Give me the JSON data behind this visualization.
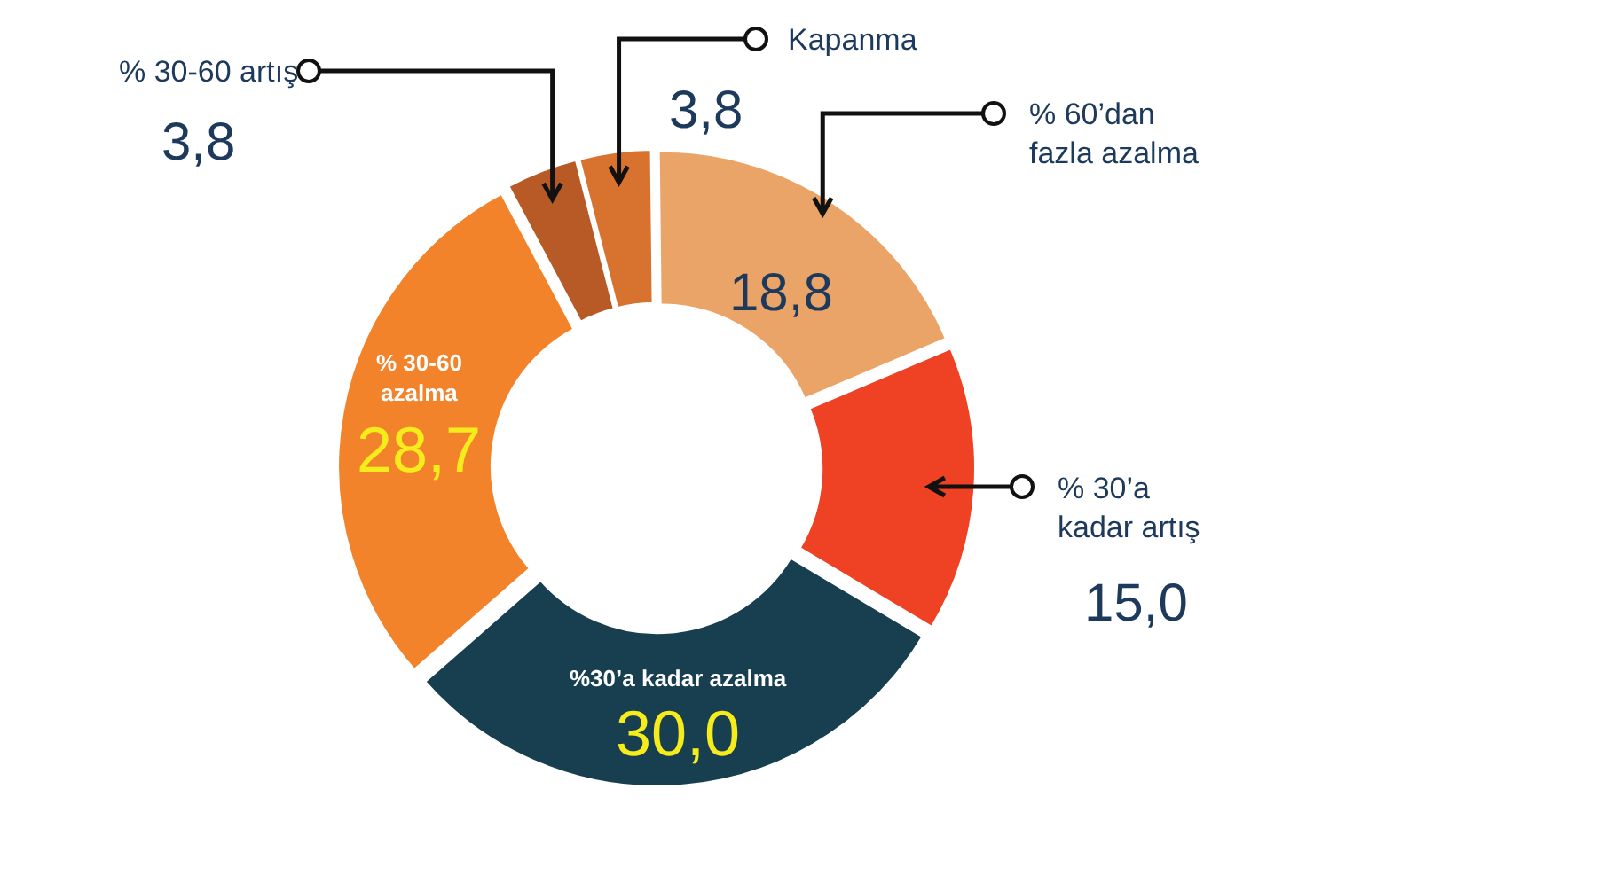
{
  "chart_data": {
    "type": "donut",
    "categories": [
      "% 30-60 artış",
      "Kapanma",
      "% 60’dan fazla azalma",
      "% 30’a kadar artış",
      "%30’a kadar azalma",
      "% 30-60 azalma"
    ],
    "values": [
      3.8,
      3.8,
      18.8,
      15.0,
      30.0,
      28.7
    ],
    "value_labels": [
      "3,8",
      "3,8",
      "18,8",
      "15,0",
      "30,0",
      "28,7"
    ],
    "colors": [
      "#b85a26",
      "#d8722f",
      "#eba468",
      "#ef4123",
      "#173f4f",
      "#f2832a"
    ]
  }
}
